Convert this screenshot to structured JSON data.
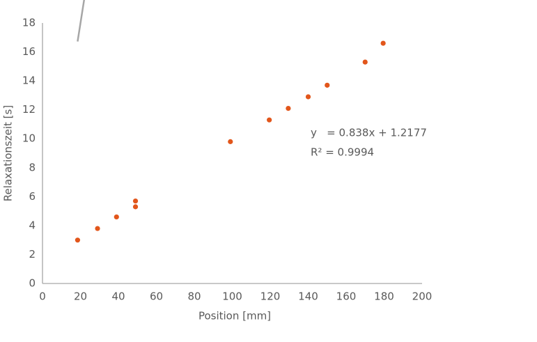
{
  "chart_data": {
    "type": "scatter",
    "x_label": "Position [mm]",
    "y_label": "Relaxationszeit [s]",
    "series": [
      {
        "color": "#e2561b",
        "x": [
          18.5,
          29,
          39,
          49,
          49,
          99,
          119.5,
          129.5,
          140,
          150,
          170,
          179.5
        ],
        "values": [
          3.0,
          3.8,
          4.6,
          5.7,
          5.3,
          9.8,
          11.3,
          12.1,
          12.9,
          13.7,
          15.3,
          16.6
        ]
      }
    ],
    "trendline": {
      "slope": 0.838,
      "intercept": 1.2177,
      "color": "#a6a6a6",
      "equation": "y   = 0.838x + 1.2177",
      "r2": "R² = 0.9994"
    },
    "xlim": [
      0,
      200
    ],
    "xticks": [
      0,
      20,
      40,
      60,
      80,
      100,
      120,
      140,
      160,
      180,
      200
    ],
    "ylim": [
      0,
      18
    ],
    "yticks": [
      0,
      2,
      4,
      6,
      8,
      10,
      12,
      14,
      16,
      18
    ]
  }
}
